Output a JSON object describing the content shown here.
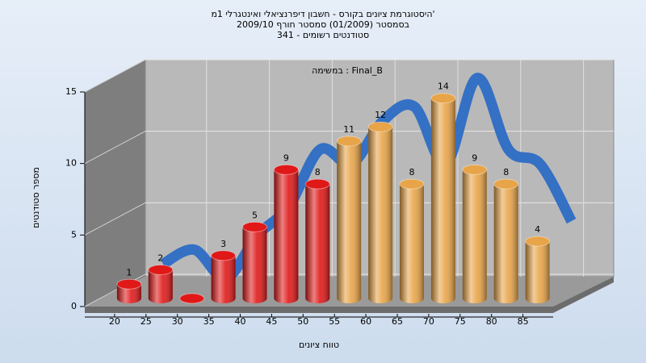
{
  "chart_data": {
    "type": "bar3d",
    "title": [
      "היסטוגרמת ציונים בקורס - חשבון דיפרנציאלי ואינטגרלי 1מ'",
      "בסמסטר  (01/2009)  סמסטר חורף 2009/10",
      "סטודנטים רשומים - 341"
    ],
    "annotation": "במשימה : Final_B",
    "x_label": "טווח ציונים",
    "y_label": "מספר סטודנטים",
    "categories": [
      "20",
      "25",
      "30",
      "35",
      "40",
      "45",
      "50",
      "55",
      "60",
      "65",
      "70",
      "75",
      "80",
      "85"
    ],
    "values": [
      1,
      2,
      0,
      3,
      5,
      9,
      8,
      11,
      12,
      8,
      14,
      9,
      8,
      4
    ],
    "colors": [
      "#e01818",
      "#e01818",
      "#e01818",
      "#e01818",
      "#e01818",
      "#e01818",
      "#e01818",
      "#e8a448",
      "#e8a448",
      "#e8a448",
      "#e8a448",
      "#e8a448",
      "#e8a448",
      "#e8a448"
    ],
    "ribbon_color": "#3470c4",
    "ylim": [
      0,
      15
    ],
    "yticks": [
      0,
      5,
      10,
      15
    ],
    "grid": true
  }
}
